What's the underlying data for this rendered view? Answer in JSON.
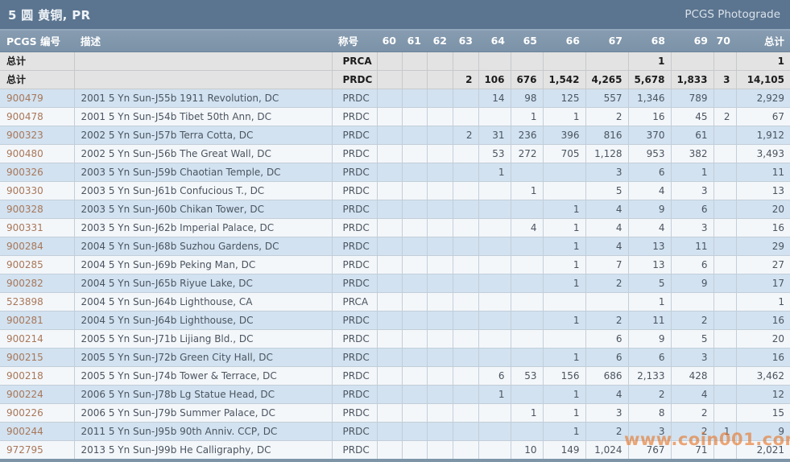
{
  "title": "5 圆 黄铜, PR",
  "brand": "PCGS Photograde",
  "watermark": "www.coin001.com",
  "table": {
    "headers": [
      "PCGS 编号",
      "描述",
      "称号",
      "60",
      "61",
      "62",
      "63",
      "64",
      "65",
      "66",
      "67",
      "68",
      "69",
      "70",
      "总计"
    ],
    "rows": [
      {
        "kind": "summary",
        "cells": [
          "总计",
          "",
          "PRCA",
          "",
          "",
          "",
          "",
          "",
          "",
          "",
          "",
          "1",
          "",
          "",
          "1"
        ]
      },
      {
        "kind": "summary",
        "cells": [
          "总计",
          "",
          "PRDC",
          "",
          "",
          "",
          "2",
          "106",
          "676",
          "1,542",
          "4,265",
          "5,678",
          "1,833",
          "3",
          "14,105"
        ]
      },
      {
        "kind": "data",
        "cells": [
          "900479",
          "2001 5 Yn Sun-J55b 1911 Revolution, DC",
          "PRDC",
          "",
          "",
          "",
          "",
          "14",
          "98",
          "125",
          "557",
          "1,346",
          "789",
          "",
          "2,929"
        ]
      },
      {
        "kind": "data",
        "cells": [
          "900478",
          "2001 5 Yn Sun-J54b Tibet 50th Ann, DC",
          "PRDC",
          "",
          "",
          "",
          "",
          "",
          "1",
          "1",
          "2",
          "16",
          "45",
          "2",
          "67"
        ]
      },
      {
        "kind": "data",
        "cells": [
          "900323",
          "2002 5 Yn Sun-J57b Terra Cotta, DC",
          "PRDC",
          "",
          "",
          "",
          "2",
          "31",
          "236",
          "396",
          "816",
          "370",
          "61",
          "",
          "1,912"
        ]
      },
      {
        "kind": "data",
        "cells": [
          "900480",
          "2002 5 Yn Sun-J56b The Great Wall, DC",
          "PRDC",
          "",
          "",
          "",
          "",
          "53",
          "272",
          "705",
          "1,128",
          "953",
          "382",
          "",
          "3,493"
        ]
      },
      {
        "kind": "data",
        "cells": [
          "900326",
          "2003 5 Yn Sun-J59b Chaotian Temple, DC",
          "PRDC",
          "",
          "",
          "",
          "",
          "1",
          "",
          "",
          "3",
          "6",
          "1",
          "",
          "11"
        ]
      },
      {
        "kind": "data",
        "cells": [
          "900330",
          "2003 5 Yn Sun-J61b Confucious T., DC",
          "PRDC",
          "",
          "",
          "",
          "",
          "",
          "1",
          "",
          "5",
          "4",
          "3",
          "",
          "13"
        ]
      },
      {
        "kind": "data",
        "cells": [
          "900328",
          "2003 5 Yn Sun-J60b Chikan Tower, DC",
          "PRDC",
          "",
          "",
          "",
          "",
          "",
          "",
          "1",
          "4",
          "9",
          "6",
          "",
          "20"
        ]
      },
      {
        "kind": "data",
        "cells": [
          "900331",
          "2003 5 Yn Sun-J62b Imperial Palace, DC",
          "PRDC",
          "",
          "",
          "",
          "",
          "",
          "4",
          "1",
          "4",
          "4",
          "3",
          "",
          "16"
        ]
      },
      {
        "kind": "data",
        "cells": [
          "900284",
          "2004 5 Yn Sun-J68b Suzhou Gardens, DC",
          "PRDC",
          "",
          "",
          "",
          "",
          "",
          "",
          "1",
          "4",
          "13",
          "11",
          "",
          "29"
        ]
      },
      {
        "kind": "data",
        "cells": [
          "900285",
          "2004 5 Yn Sun-J69b Peking Man, DC",
          "PRDC",
          "",
          "",
          "",
          "",
          "",
          "",
          "1",
          "7",
          "13",
          "6",
          "",
          "27"
        ]
      },
      {
        "kind": "data",
        "cells": [
          "900282",
          "2004 5 Yn Sun-J65b Riyue Lake, DC",
          "PRDC",
          "",
          "",
          "",
          "",
          "",
          "",
          "1",
          "2",
          "5",
          "9",
          "",
          "17"
        ]
      },
      {
        "kind": "data",
        "cells": [
          "523898",
          "2004 5 Yn Sun-J64b Lighthouse, CA",
          "PRCA",
          "",
          "",
          "",
          "",
          "",
          "",
          "",
          "",
          "1",
          "",
          "",
          "1"
        ]
      },
      {
        "kind": "data",
        "cells": [
          "900281",
          "2004 5 Yn Sun-J64b Lighthouse, DC",
          "PRDC",
          "",
          "",
          "",
          "",
          "",
          "",
          "1",
          "2",
          "11",
          "2",
          "",
          "16"
        ]
      },
      {
        "kind": "data",
        "cells": [
          "900214",
          "2005 5 Yn Sun-J71b Lijiang Bld., DC",
          "PRDC",
          "",
          "",
          "",
          "",
          "",
          "",
          "",
          "6",
          "9",
          "5",
          "",
          "20"
        ]
      },
      {
        "kind": "data",
        "cells": [
          "900215",
          "2005 5 Yn Sun-J72b Green City Hall, DC",
          "PRDC",
          "",
          "",
          "",
          "",
          "",
          "",
          "1",
          "6",
          "6",
          "3",
          "",
          "16"
        ]
      },
      {
        "kind": "data",
        "cells": [
          "900218",
          "2005 5 Yn Sun-J74b Tower & Terrace, DC",
          "PRDC",
          "",
          "",
          "",
          "",
          "6",
          "53",
          "156",
          "686",
          "2,133",
          "428",
          "",
          "3,462"
        ]
      },
      {
        "kind": "data",
        "cells": [
          "900224",
          "2006 5 Yn Sun-J78b Lg Statue Head, DC",
          "PRDC",
          "",
          "",
          "",
          "",
          "1",
          "",
          "1",
          "4",
          "2",
          "4",
          "",
          "12"
        ]
      },
      {
        "kind": "data",
        "cells": [
          "900226",
          "2006 5 Yn Sun-J79b Summer Palace, DC",
          "PRDC",
          "",
          "",
          "",
          "",
          "",
          "1",
          "1",
          "3",
          "8",
          "2",
          "",
          "15"
        ]
      },
      {
        "kind": "data",
        "cells": [
          "900244",
          "2011 5 Yn Sun-J95b 90th Anniv. CCP, DC",
          "PRDC",
          "",
          "",
          "",
          "",
          "",
          "",
          "1",
          "2",
          "3",
          "2",
          "1",
          "9"
        ]
      },
      {
        "kind": "data",
        "cells": [
          "972795",
          "2013 5 Yn Sun-J99b He Calligraphy, DC",
          "PRDC",
          "",
          "",
          "",
          "",
          "",
          "10",
          "149",
          "1,024",
          "767",
          "71",
          "",
          "2,021"
        ]
      }
    ]
  },
  "colors": {
    "titlebar": "#5b748f",
    "header_row": "#7b92a8",
    "row_blue": "#d2e2f0",
    "row_light": "#f4f7fa",
    "summary_row": "#e3e3e3",
    "pcgs_number": "#a8775a",
    "watermark": "#e67a2e"
  }
}
